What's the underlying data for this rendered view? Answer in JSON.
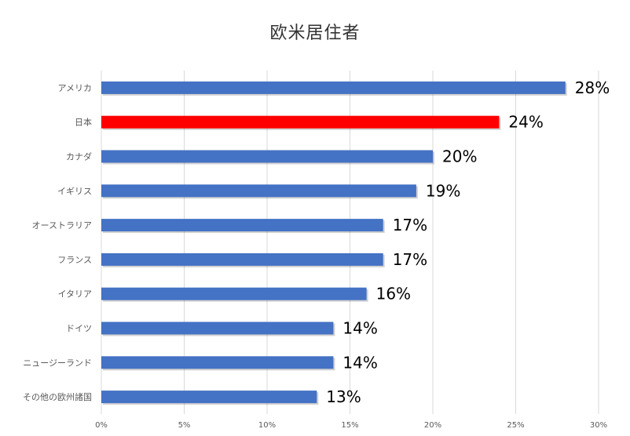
{
  "chart_data": {
    "type": "bar",
    "orientation": "horizontal",
    "title": "欧米居住者",
    "categories": [
      "アメリカ",
      "日本",
      "カナダ",
      "イギリス",
      "オーストラリア",
      "フランス",
      "イタリア",
      "ドイツ",
      "ニュージーランド",
      "その他の欧州諸国"
    ],
    "values": [
      28,
      24,
      20,
      19,
      17,
      17,
      16,
      14,
      14,
      13
    ],
    "data_labels": [
      "28%",
      "24%",
      "20%",
      "19%",
      "17%",
      "17%",
      "16%",
      "14%",
      "14%",
      "13%"
    ],
    "x_ticks": [
      "0%",
      "5%",
      "10%",
      "15%",
      "20%",
      "25%",
      "30%"
    ],
    "xlim": [
      0,
      30
    ],
    "grid": true,
    "legend": "none",
    "colors": {
      "default": "#4472C4",
      "highlight": "#FF0000",
      "highlight_category": "日本",
      "grid": "#D9D9D9"
    }
  }
}
